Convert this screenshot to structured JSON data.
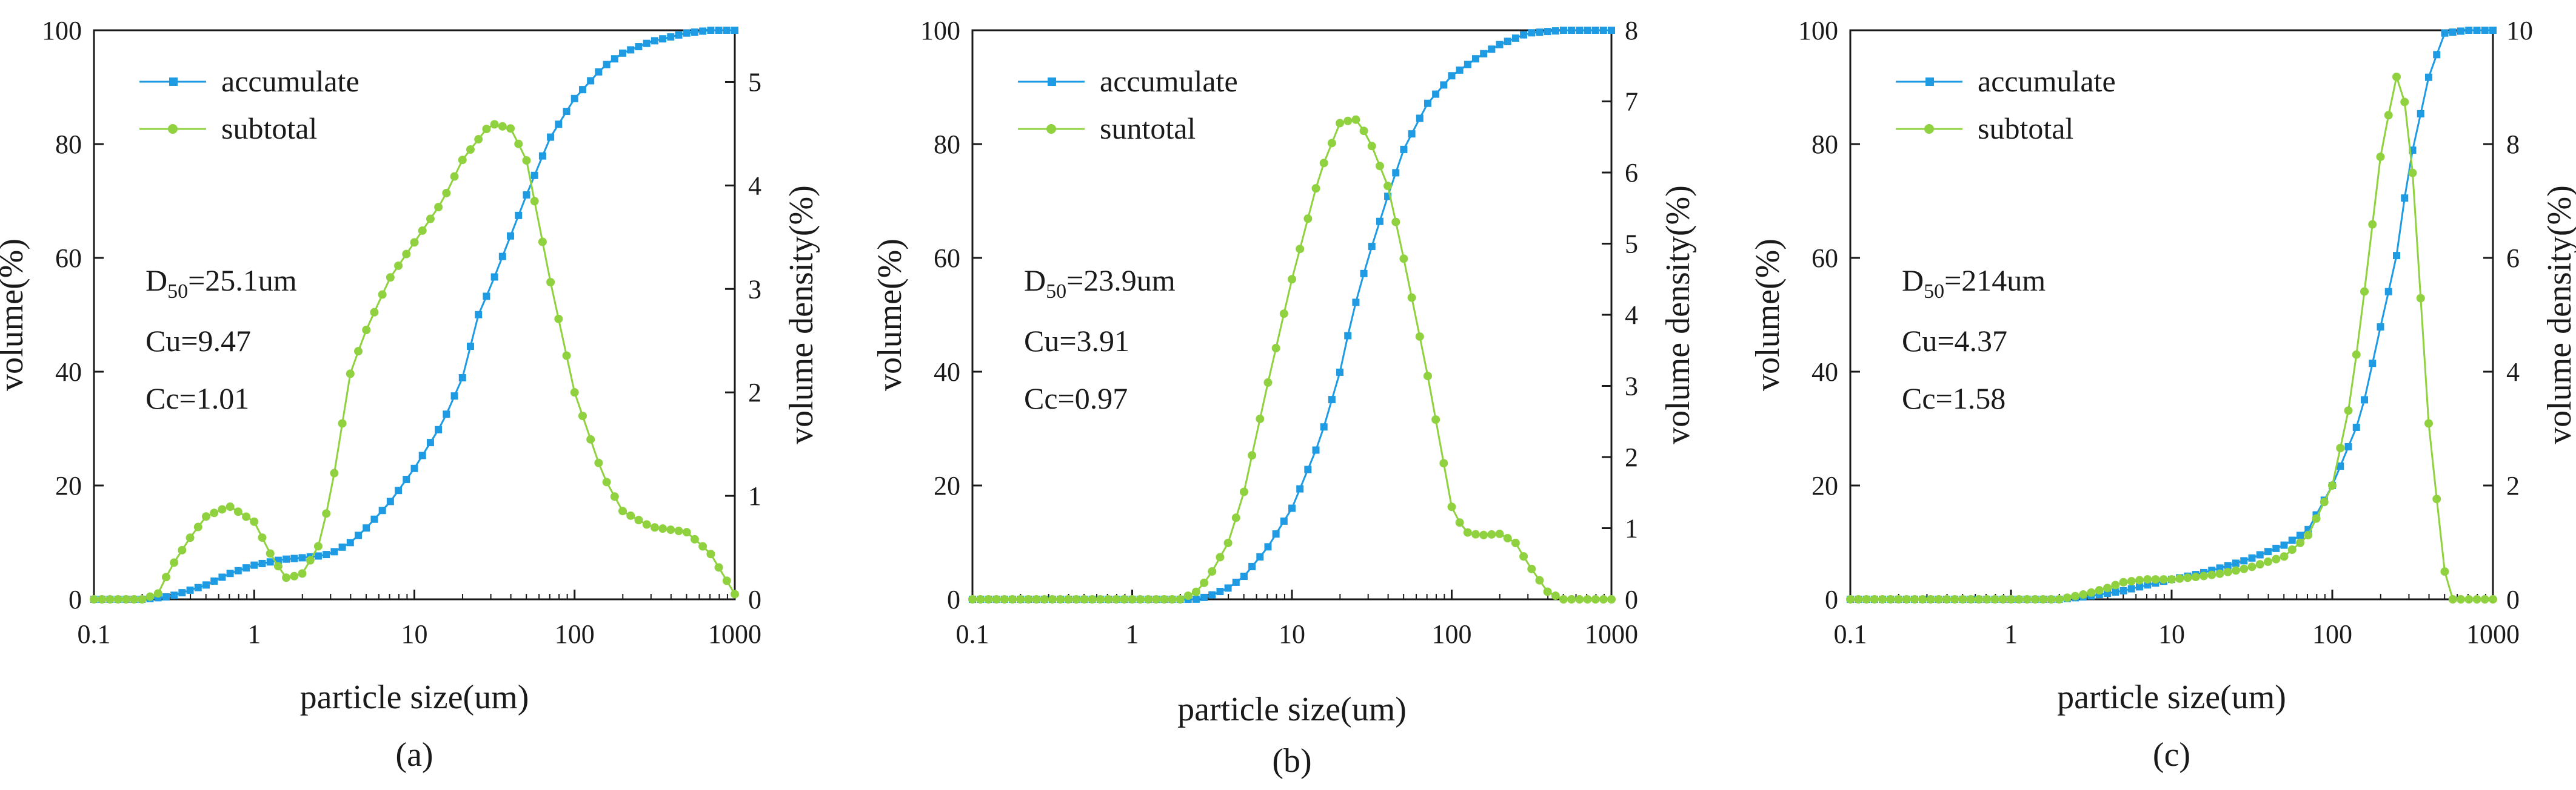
{
  "colors": {
    "accumulate": "#1e9be3",
    "subtotal": "#8fd13f",
    "axis": "#1a1a1a"
  },
  "chart_data": [
    {
      "type": "line",
      "caption": "(a)",
      "xlabel": "particle size(um)",
      "ylabel": "volume(%)",
      "y2label": "volume density(%)",
      "xscale": "log",
      "xlim": [
        0.1,
        1000
      ],
      "ylim": [
        0,
        100
      ],
      "y2lim": [
        0,
        5.5
      ],
      "xticks": [
        "0.1",
        "1",
        "10",
        "100",
        "1000"
      ],
      "yticks": [
        "0",
        "20",
        "40",
        "60",
        "80",
        "100"
      ],
      "y2ticks": [
        "0",
        "1",
        "2",
        "3",
        "4",
        "5"
      ],
      "legend": {
        "position": "top-left",
        "entries": [
          "accumulate",
          "subtotal"
        ]
      },
      "annotations": {
        "d50_prefix": "D",
        "d50_sub": "50",
        "d50_value": "=25.1um",
        "cu": "Cu=9.47",
        "cc": "Cc=1.01"
      },
      "series": [
        {
          "name": "accumulate",
          "axis": "left",
          "marker": "square",
          "x": [
            0.1,
            0.2,
            0.3,
            0.5,
            0.7,
            1,
            1.5,
            2,
            2.5,
            3,
            4,
            5,
            7,
            10,
            15,
            20,
            25.1,
            30,
            40,
            50,
            70,
            100,
            150,
            200,
            300,
            500,
            700,
            1000
          ],
          "y": [
            0,
            0,
            0.5,
            2.5,
            4.5,
            6,
            7,
            7.3,
            7.6,
            8,
            10,
            12.5,
            17,
            23,
            31,
            39,
            50,
            55,
            64,
            71,
            81,
            88,
            93.5,
            96,
            98,
            99.5,
            100,
            100
          ]
        },
        {
          "name": "subtotal",
          "axis": "right",
          "marker": "circle",
          "x": [
            0.1,
            0.2,
            0.25,
            0.3,
            0.4,
            0.5,
            0.7,
            1,
            1.3,
            1.6,
            2,
            2.5,
            3,
            4,
            5,
            7,
            10,
            15,
            20,
            30,
            40,
            50,
            70,
            100,
            150,
            200,
            300,
            500,
            700,
            1000
          ],
          "y": [
            0,
            0,
            0.05,
            0.3,
            0.6,
            0.8,
            0.9,
            0.75,
            0.4,
            0.2,
            0.25,
            0.5,
            1.0,
            2.2,
            2.6,
            3.1,
            3.45,
            3.85,
            4.25,
            4.6,
            4.55,
            4.25,
            3.1,
            2.0,
            1.2,
            0.85,
            0.7,
            0.65,
            0.45,
            0.05
          ]
        }
      ]
    },
    {
      "type": "line",
      "caption": "(b)",
      "xlabel": "particle size(um)",
      "ylabel": "volume(%)",
      "y2label": "volume density(%)",
      "xscale": "log",
      "xlim": [
        0.1,
        1000
      ],
      "ylim": [
        0,
        100
      ],
      "y2lim": [
        0,
        8
      ],
      "xticks": [
        "0.1",
        "1",
        "10",
        "100",
        "1000"
      ],
      "yticks": [
        "0",
        "20",
        "40",
        "60",
        "80",
        "100"
      ],
      "y2ticks": [
        "0",
        "1",
        "2",
        "3",
        "4",
        "5",
        "6",
        "7",
        "8"
      ],
      "legend": {
        "position": "top-left",
        "entries": [
          "accumulate",
          "suntotal"
        ]
      },
      "annotations": {
        "d50_prefix": "D",
        "d50_sub": "50",
        "d50_value": "=23.9um",
        "cu": "Cu=3.91",
        "cc": "Cc=0.97"
      },
      "series": [
        {
          "name": "accumulate",
          "axis": "left",
          "marker": "square",
          "x": [
            0.1,
            1,
            2.5,
            3,
            4,
            5,
            7,
            10,
            15,
            20,
            23.9,
            30,
            40,
            50,
            70,
            100,
            150,
            200,
            300,
            500,
            1000
          ],
          "y": [
            0,
            0,
            0,
            0.5,
            2,
            4,
            9,
            16,
            28,
            40,
            50,
            60,
            71,
            79,
            87,
            92,
            95.5,
            97.5,
            99.5,
            100,
            100
          ]
        },
        {
          "name": "suntotal",
          "axis": "right",
          "marker": "circle",
          "x": [
            0.1,
            1,
            2,
            2.5,
            3,
            4,
            5,
            7,
            10,
            15,
            20,
            25,
            30,
            40,
            50,
            70,
            100,
            120,
            150,
            200,
            250,
            300,
            400,
            500,
            1000
          ],
          "y": [
            0,
            0,
            0,
            0.1,
            0.3,
            0.8,
            1.5,
            3.0,
            4.5,
            6.0,
            6.7,
            6.75,
            6.5,
            5.8,
            4.8,
            3.2,
            1.3,
            0.95,
            0.9,
            0.92,
            0.8,
            0.5,
            0.1,
            0,
            0
          ]
        }
      ]
    },
    {
      "type": "line",
      "caption": "(c)",
      "xlabel": "particle size(um)",
      "ylabel": "volume(%)",
      "y2label": "volume density(%)",
      "xscale": "log",
      "xlim": [
        0.1,
        1000
      ],
      "ylim": [
        0,
        100
      ],
      "y2lim": [
        0,
        10
      ],
      "xticks": [
        "0.1",
        "1",
        "10",
        "100",
        "1000"
      ],
      "yticks": [
        "0",
        "20",
        "40",
        "60",
        "80",
        "100"
      ],
      "y2ticks": [
        "0",
        "2",
        "4",
        "6",
        "8",
        "10"
      ],
      "legend": {
        "position": "top-left",
        "entries": [
          "accumulate",
          "subtotal"
        ]
      },
      "annotations": {
        "d50_prefix": "D",
        "d50_sub": "50",
        "d50_value": "=214um",
        "cu": "Cu=4.37",
        "cc": "Cc=1.58"
      },
      "series": [
        {
          "name": "accumulate",
          "axis": "left",
          "marker": "square",
          "x": [
            0.1,
            1,
            2,
            3,
            5,
            7,
            10,
            15,
            20,
            30,
            50,
            70,
            100,
            150,
            200,
            250,
            300,
            400,
            500,
            700,
            1000
          ],
          "y": [
            0,
            0,
            0,
            0.5,
            1.5,
            2.5,
            3.5,
            4.5,
            5.5,
            7,
            9.5,
            12,
            20,
            32,
            48,
            60,
            76,
            92,
            99.5,
            100,
            100
          ]
        },
        {
          "name": "subtotal",
          "axis": "right",
          "marker": "circle",
          "x": [
            0.1,
            1,
            2,
            3,
            4,
            5,
            7,
            10,
            15,
            20,
            30,
            50,
            70,
            100,
            130,
            160,
            200,
            250,
            300,
            400,
            500,
            550,
            1000
          ],
          "y": [
            0,
            0,
            0,
            0.1,
            0.2,
            0.3,
            0.35,
            0.35,
            0.4,
            0.45,
            0.55,
            0.75,
            1.1,
            2.0,
            3.5,
            5.5,
            7.8,
            9.2,
            8.5,
            3.0,
            0.5,
            0,
            0
          ]
        }
      ]
    }
  ]
}
